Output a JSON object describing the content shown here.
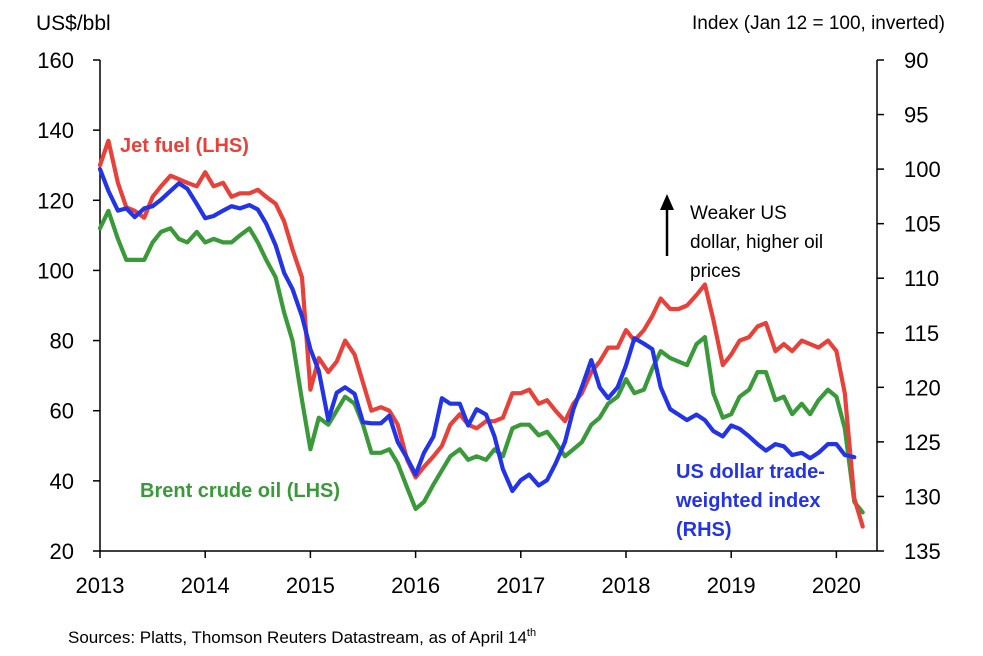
{
  "chart_data": {
    "type": "line",
    "title": "",
    "ylabel": "US$/bbl",
    "y2label": "Index (Jan 12 = 100, inverted)",
    "xlabel": "",
    "xlim": [
      2013,
      2020.35
    ],
    "ylim": [
      20,
      160
    ],
    "y2lim": [
      90,
      135
    ],
    "y2_inverted": true,
    "x_ticks": [
      "2013",
      "2014",
      "2015",
      "2016",
      "2017",
      "2018",
      "2019",
      "2020"
    ],
    "y_ticks": [
      "20",
      "40",
      "60",
      "80",
      "100",
      "120",
      "140",
      "160"
    ],
    "y2_ticks": [
      "90",
      "95",
      "100",
      "105",
      "110",
      "115",
      "120",
      "125",
      "130",
      "135"
    ],
    "grid": false,
    "legend": "inline labels",
    "series": [
      {
        "name": "Jet fuel (LHS)",
        "axis": "left",
        "color": "#e8413a",
        "points": [
          [
            2013.0,
            130
          ],
          [
            2013.08,
            137
          ],
          [
            2013.17,
            125
          ],
          [
            2013.25,
            118
          ],
          [
            2013.33,
            117
          ],
          [
            2013.42,
            115
          ],
          [
            2013.5,
            121
          ],
          [
            2013.58,
            124
          ],
          [
            2013.67,
            127
          ],
          [
            2013.75,
            126
          ],
          [
            2013.83,
            125
          ],
          [
            2013.92,
            124
          ],
          [
            2014.0,
            128
          ],
          [
            2014.08,
            124
          ],
          [
            2014.17,
            125
          ],
          [
            2014.25,
            121
          ],
          [
            2014.33,
            122
          ],
          [
            2014.42,
            122
          ],
          [
            2014.5,
            123
          ],
          [
            2014.58,
            121
          ],
          [
            2014.67,
            119
          ],
          [
            2014.75,
            114
          ],
          [
            2014.83,
            106
          ],
          [
            2014.92,
            98
          ],
          [
            2015.0,
            66
          ],
          [
            2015.08,
            75
          ],
          [
            2015.17,
            71
          ],
          [
            2015.25,
            74
          ],
          [
            2015.33,
            80
          ],
          [
            2015.42,
            76
          ],
          [
            2015.5,
            68
          ],
          [
            2015.58,
            60
          ],
          [
            2015.67,
            61
          ],
          [
            2015.75,
            60
          ],
          [
            2015.83,
            56
          ],
          [
            2015.92,
            46
          ],
          [
            2016.0,
            41
          ],
          [
            2016.08,
            44
          ],
          [
            2016.17,
            47
          ],
          [
            2016.25,
            50
          ],
          [
            2016.33,
            56
          ],
          [
            2016.42,
            59
          ],
          [
            2016.5,
            56
          ],
          [
            2016.58,
            55
          ],
          [
            2016.67,
            57
          ],
          [
            2016.75,
            57
          ],
          [
            2016.83,
            58
          ],
          [
            2016.92,
            65
          ],
          [
            2017.0,
            65
          ],
          [
            2017.08,
            66
          ],
          [
            2017.17,
            62
          ],
          [
            2017.25,
            63
          ],
          [
            2017.33,
            60
          ],
          [
            2017.42,
            57
          ],
          [
            2017.5,
            62
          ],
          [
            2017.58,
            65
          ],
          [
            2017.67,
            71
          ],
          [
            2017.75,
            74
          ],
          [
            2017.83,
            78
          ],
          [
            2017.92,
            78
          ],
          [
            2018.0,
            83
          ],
          [
            2018.08,
            80
          ],
          [
            2018.17,
            83
          ],
          [
            2018.25,
            87
          ],
          [
            2018.33,
            92
          ],
          [
            2018.42,
            89
          ],
          [
            2018.5,
            89
          ],
          [
            2018.58,
            90
          ],
          [
            2018.67,
            93
          ],
          [
            2018.75,
            96
          ],
          [
            2018.83,
            86
          ],
          [
            2018.92,
            73
          ],
          [
            2019.0,
            76
          ],
          [
            2019.08,
            80
          ],
          [
            2019.17,
            81
          ],
          [
            2019.25,
            84
          ],
          [
            2019.33,
            85
          ],
          [
            2019.42,
            77
          ],
          [
            2019.5,
            79
          ],
          [
            2019.58,
            77
          ],
          [
            2019.67,
            80
          ],
          [
            2019.75,
            79
          ],
          [
            2019.83,
            78
          ],
          [
            2019.92,
            80
          ],
          [
            2020.0,
            77
          ],
          [
            2020.08,
            65
          ],
          [
            2020.17,
            35
          ],
          [
            2020.25,
            27
          ]
        ]
      },
      {
        "name": "Brent crude oil (LHS)",
        "axis": "left",
        "color": "#3a9a3a",
        "points": [
          [
            2013.0,
            112
          ],
          [
            2013.08,
            117
          ],
          [
            2013.17,
            109
          ],
          [
            2013.25,
            103
          ],
          [
            2013.33,
            103
          ],
          [
            2013.42,
            103
          ],
          [
            2013.5,
            108
          ],
          [
            2013.58,
            111
          ],
          [
            2013.67,
            112
          ],
          [
            2013.75,
            109
          ],
          [
            2013.83,
            108
          ],
          [
            2013.92,
            111
          ],
          [
            2014.0,
            108
          ],
          [
            2014.08,
            109
          ],
          [
            2014.17,
            108
          ],
          [
            2014.25,
            108
          ],
          [
            2014.33,
            110
          ],
          [
            2014.42,
            112
          ],
          [
            2014.5,
            108
          ],
          [
            2014.58,
            103
          ],
          [
            2014.67,
            98
          ],
          [
            2014.75,
            88
          ],
          [
            2014.83,
            80
          ],
          [
            2014.92,
            63
          ],
          [
            2015.0,
            49
          ],
          [
            2015.08,
            58
          ],
          [
            2015.17,
            56
          ],
          [
            2015.25,
            60
          ],
          [
            2015.33,
            64
          ],
          [
            2015.42,
            62
          ],
          [
            2015.5,
            56
          ],
          [
            2015.58,
            48
          ],
          [
            2015.67,
            48
          ],
          [
            2015.75,
            49
          ],
          [
            2015.83,
            45
          ],
          [
            2015.92,
            38
          ],
          [
            2016.0,
            32
          ],
          [
            2016.08,
            34
          ],
          [
            2016.17,
            39
          ],
          [
            2016.25,
            43
          ],
          [
            2016.33,
            47
          ],
          [
            2016.42,
            49
          ],
          [
            2016.5,
            46
          ],
          [
            2016.58,
            47
          ],
          [
            2016.67,
            46
          ],
          [
            2016.75,
            49
          ],
          [
            2016.83,
            47
          ],
          [
            2016.92,
            55
          ],
          [
            2017.0,
            56
          ],
          [
            2017.08,
            56
          ],
          [
            2017.17,
            53
          ],
          [
            2017.25,
            54
          ],
          [
            2017.33,
            51
          ],
          [
            2017.42,
            47
          ],
          [
            2017.5,
            49
          ],
          [
            2017.58,
            51
          ],
          [
            2017.67,
            56
          ],
          [
            2017.75,
            58
          ],
          [
            2017.83,
            62
          ],
          [
            2017.92,
            64
          ],
          [
            2018.0,
            69
          ],
          [
            2018.08,
            65
          ],
          [
            2018.17,
            66
          ],
          [
            2018.25,
            72
          ],
          [
            2018.33,
            77
          ],
          [
            2018.42,
            75
          ],
          [
            2018.5,
            74
          ],
          [
            2018.58,
            73
          ],
          [
            2018.67,
            79
          ],
          [
            2018.75,
            81
          ],
          [
            2018.83,
            65
          ],
          [
            2018.92,
            58
          ],
          [
            2019.0,
            59
          ],
          [
            2019.08,
            64
          ],
          [
            2019.17,
            66
          ],
          [
            2019.25,
            71
          ],
          [
            2019.33,
            71
          ],
          [
            2019.42,
            63
          ],
          [
            2019.5,
            64
          ],
          [
            2019.58,
            59
          ],
          [
            2019.67,
            62
          ],
          [
            2019.75,
            59
          ],
          [
            2019.83,
            63
          ],
          [
            2019.92,
            66
          ],
          [
            2020.0,
            64
          ],
          [
            2020.08,
            55
          ],
          [
            2020.17,
            34
          ],
          [
            2020.25,
            31
          ]
        ]
      },
      {
        "name": "US dollar trade-weighted index (RHS)",
        "axis": "right",
        "color": "#2233e8",
        "points": [
          [
            2013.0,
            100
          ],
          [
            2013.08,
            102
          ],
          [
            2013.17,
            103.8
          ],
          [
            2013.25,
            103.6
          ],
          [
            2013.33,
            104.4
          ],
          [
            2013.42,
            103.6
          ],
          [
            2013.5,
            103.4
          ],
          [
            2013.58,
            102.8
          ],
          [
            2013.67,
            102
          ],
          [
            2013.75,
            101.3
          ],
          [
            2013.83,
            101.8
          ],
          [
            2013.92,
            103.2
          ],
          [
            2014.0,
            104.5
          ],
          [
            2014.08,
            104.3
          ],
          [
            2014.17,
            103.8
          ],
          [
            2014.25,
            103.4
          ],
          [
            2014.33,
            103.6
          ],
          [
            2014.42,
            103.3
          ],
          [
            2014.5,
            103.7
          ],
          [
            2014.58,
            105
          ],
          [
            2014.67,
            107
          ],
          [
            2014.75,
            109.5
          ],
          [
            2014.83,
            111
          ],
          [
            2014.92,
            113.5
          ],
          [
            2015.0,
            116.5
          ],
          [
            2015.08,
            118.5
          ],
          [
            2015.17,
            123
          ],
          [
            2015.25,
            120.5
          ],
          [
            2015.33,
            120
          ],
          [
            2015.42,
            120.6
          ],
          [
            2015.5,
            123.2
          ],
          [
            2015.58,
            123.3
          ],
          [
            2015.67,
            123.3
          ],
          [
            2015.75,
            122.6
          ],
          [
            2015.83,
            125
          ],
          [
            2015.92,
            126.5
          ],
          [
            2016.0,
            128
          ],
          [
            2016.08,
            126
          ],
          [
            2016.17,
            124.5
          ],
          [
            2016.25,
            121
          ],
          [
            2016.33,
            121.5
          ],
          [
            2016.42,
            121.5
          ],
          [
            2016.5,
            123.5
          ],
          [
            2016.58,
            122
          ],
          [
            2016.67,
            122.5
          ],
          [
            2016.75,
            124.5
          ],
          [
            2016.83,
            127.5
          ],
          [
            2016.92,
            129.5
          ],
          [
            2017.0,
            128.5
          ],
          [
            2017.08,
            128
          ],
          [
            2017.17,
            129
          ],
          [
            2017.25,
            128.5
          ],
          [
            2017.33,
            127
          ],
          [
            2017.42,
            125
          ],
          [
            2017.5,
            122
          ],
          [
            2017.58,
            120
          ],
          [
            2017.67,
            117.5
          ],
          [
            2017.75,
            120
          ],
          [
            2017.83,
            121
          ],
          [
            2017.92,
            120
          ],
          [
            2018.0,
            118
          ],
          [
            2018.08,
            115.5
          ],
          [
            2018.17,
            116
          ],
          [
            2018.25,
            116.5
          ],
          [
            2018.33,
            120
          ],
          [
            2018.42,
            122
          ],
          [
            2018.5,
            122.5
          ],
          [
            2018.58,
            123
          ],
          [
            2018.67,
            122.5
          ],
          [
            2018.75,
            123
          ],
          [
            2018.83,
            124
          ],
          [
            2018.92,
            124.5
          ],
          [
            2019.0,
            123.5
          ],
          [
            2019.08,
            123.8
          ],
          [
            2019.17,
            124.5
          ],
          [
            2019.25,
            125.2
          ],
          [
            2019.33,
            125.8
          ],
          [
            2019.42,
            125.2
          ],
          [
            2019.5,
            125.4
          ],
          [
            2019.58,
            126.2
          ],
          [
            2019.67,
            126
          ],
          [
            2019.75,
            126.5
          ],
          [
            2019.83,
            126
          ],
          [
            2019.92,
            125.2
          ],
          [
            2020.0,
            125.2
          ],
          [
            2020.08,
            126.2
          ],
          [
            2020.17,
            126.4
          ]
        ]
      }
    ],
    "annotations": {
      "jet_label": "Jet fuel (LHS)",
      "brent_label": "Brent crude oil (LHS)",
      "usd_label_lines": [
        "US dollar trade-",
        "weighted index",
        "(RHS)"
      ],
      "note_lines": [
        "Weaker US",
        "dollar, higher oil",
        "prices"
      ]
    },
    "source": "Sources: Platts, Thomson Reuters Datastream, as of April 14",
    "source_superscript": "th"
  }
}
